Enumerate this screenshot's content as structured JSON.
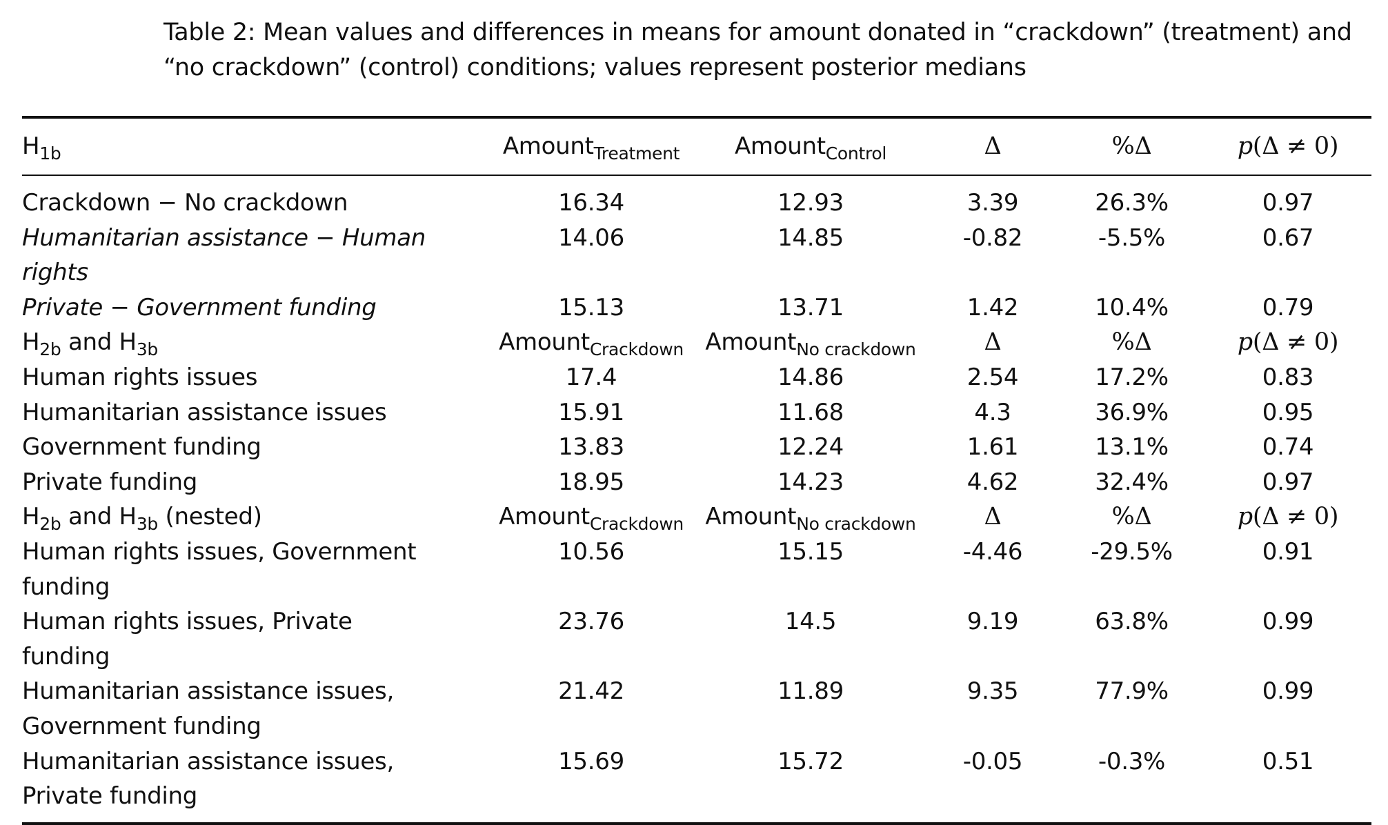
{
  "caption": {
    "line1": "Table 2: Mean values and differences in means for amount donated in “crackdown” (treatment) and",
    "line2": "“no crackdown” (control) conditions; values represent posterior medians"
  },
  "headers": {
    "h1": {
      "label_main": "H",
      "label_sub": "1b",
      "amount_a_main": "Amount",
      "amount_a_sub": "Treatment",
      "amount_b_main": "Amount",
      "amount_b_sub": "Control",
      "delta": "Δ",
      "pct_delta": "%Δ",
      "p_p": "p",
      "p_rest": "(Δ ≠ 0)"
    },
    "h2": {
      "label_part1": "H",
      "label_sub1": "2b",
      "label_part2": " and H",
      "label_sub2": "3b",
      "label_part3": "",
      "amount_a_main": "Amount",
      "amount_a_sub": "Crackdown",
      "amount_b_main": "Amount",
      "amount_b_sub": "No crackdown",
      "delta": "Δ",
      "pct_delta": "%Δ",
      "p_p": "p",
      "p_rest": "(Δ ≠ 0)"
    },
    "h3": {
      "label_part1": "H",
      "label_sub1": "2b",
      "label_part2": " and H",
      "label_sub2": "3b",
      "label_part3": " (nested)",
      "amount_a_main": "Amount",
      "amount_a_sub": "Crackdown",
      "amount_b_main": "Amount",
      "amount_b_sub": "No crackdown",
      "delta": "Δ",
      "pct_delta": "%Δ",
      "p_p": "p",
      "p_rest": "(Δ ≠ 0)"
    }
  },
  "rows_h1": [
    {
      "label": "Crackdown − No crackdown",
      "italic": false,
      "a": "16.34",
      "b": "12.93",
      "delta": "3.39",
      "pct": "26.3%",
      "p": "0.97"
    },
    {
      "label": "Humanitarian assistance − Human rights",
      "italic": true,
      "a": "14.06",
      "b": "14.85",
      "delta": "-0.82",
      "pct": "-5.5%",
      "p": "0.67"
    },
    {
      "label": "Private − Government funding",
      "italic": true,
      "a": "15.13",
      "b": "13.71",
      "delta": "1.42",
      "pct": "10.4%",
      "p": "0.79"
    }
  ],
  "rows_h2": [
    {
      "label": "Human rights issues",
      "a": "17.4",
      "b": "14.86",
      "delta": "2.54",
      "pct": "17.2%",
      "p": "0.83"
    },
    {
      "label": "Humanitarian assistance issues",
      "a": "15.91",
      "b": "11.68",
      "delta": "4.3",
      "pct": "36.9%",
      "p": "0.95"
    },
    {
      "label": "Government funding",
      "a": "13.83",
      "b": "12.24",
      "delta": "1.61",
      "pct": "13.1%",
      "p": "0.74"
    },
    {
      "label": "Private funding",
      "a": "18.95",
      "b": "14.23",
      "delta": "4.62",
      "pct": "32.4%",
      "p": "0.97"
    }
  ],
  "rows_h3": [
    {
      "label": "Human rights issues, Government funding",
      "a": "10.56",
      "b": "15.15",
      "delta": "-4.46",
      "pct": "-29.5%",
      "p": "0.91"
    },
    {
      "label": "Human rights issues, Private funding",
      "a": "23.76",
      "b": "14.5",
      "delta": "9.19",
      "pct": "63.8%",
      "p": "0.99"
    },
    {
      "label": "Humanitarian assistance issues, Government funding",
      "a": "21.42",
      "b": "11.89",
      "delta": "9.35",
      "pct": "77.9%",
      "p": "0.99"
    },
    {
      "label": "Humanitarian assistance issues, Private funding",
      "a": "15.69",
      "b": "15.72",
      "delta": "-0.05",
      "pct": "-0.3%",
      "p": "0.51"
    }
  ]
}
